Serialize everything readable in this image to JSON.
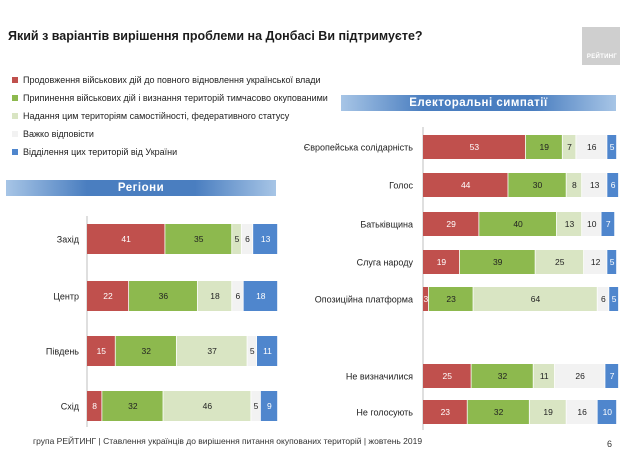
{
  "page": {
    "title": "Який з варіантів вирішення проблеми на Донбасі Ви підтримуєте?",
    "logo_text": "РЕЙТИНГ",
    "footer": "група РЕЙТИНГ | Ставлення українців до вирішення питання окупованих територій  | жовтень  2019",
    "page_number": "6"
  },
  "banners": {
    "regions": "Регіони",
    "electoral": "Електоральні симпатії"
  },
  "legend": [
    {
      "label": "Продовження військових дій до повного відновлення української влади",
      "color": "#c0504d"
    },
    {
      "label": "Припинення військових дій і визнання територій тимчасово окупованими",
      "color": "#8db94e"
    },
    {
      "label": "Надання цим територіям самостійності, федеративного статусу",
      "color": "#d9e5c3"
    },
    {
      "label": "Важко відповісти",
      "color": "#f2f2f2"
    },
    {
      "label": "Відділення цих територій від України",
      "color": "#4f86cd"
    }
  ],
  "chart_data": [
    {
      "type": "bar",
      "orientation": "horizontal",
      "stacked": true,
      "title": "Регіони",
      "categories": [
        "Захід",
        "Центр",
        "Південь",
        "Схід"
      ],
      "series": [
        {
          "name": "Продовження військових дій до повного відновлення української влади",
          "values": [
            41,
            22,
            15,
            8
          ]
        },
        {
          "name": "Припинення військових дій і визнання територій тимчасово окупованими",
          "values": [
            35,
            36,
            32,
            32
          ]
        },
        {
          "name": "Надання цим територіям самостійності, федеративного статусу",
          "values": [
            5,
            18,
            37,
            46
          ]
        },
        {
          "name": "Важко відповісти",
          "values": [
            6,
            6,
            5,
            5
          ]
        },
        {
          "name": "Відділення цих територій від України",
          "values": [
            13,
            18,
            11,
            9
          ]
        }
      ],
      "xlim": [
        0,
        100
      ]
    },
    {
      "type": "bar",
      "orientation": "horizontal",
      "stacked": true,
      "title": "Електоральні симпатії",
      "categories": [
        "Європейська солідарність",
        "Голос",
        "Батьківщина",
        "Слуга народу",
        "Опозиційна платформа",
        "Не визначилися",
        "Не голосують"
      ],
      "series": [
        {
          "name": "Продовження військових дій до повного відновлення української влади",
          "values": [
            53,
            44,
            29,
            19,
            3,
            25,
            23
          ]
        },
        {
          "name": "Припинення військових дій і визнання територій тимчасово окупованими",
          "values": [
            19,
            30,
            40,
            39,
            23,
            32,
            32
          ]
        },
        {
          "name": "Надання цим територіям самостійності, федеративного статусу",
          "values": [
            7,
            8,
            13,
            25,
            64,
            11,
            19
          ]
        },
        {
          "name": "Важко відповісти",
          "values": [
            16,
            13,
            10,
            12,
            6,
            26,
            16
          ]
        },
        {
          "name": "Відділення цих територій від України",
          "values": [
            5,
            6,
            7,
            5,
            5,
            7,
            10
          ]
        }
      ],
      "xlim": [
        0,
        100
      ]
    }
  ]
}
